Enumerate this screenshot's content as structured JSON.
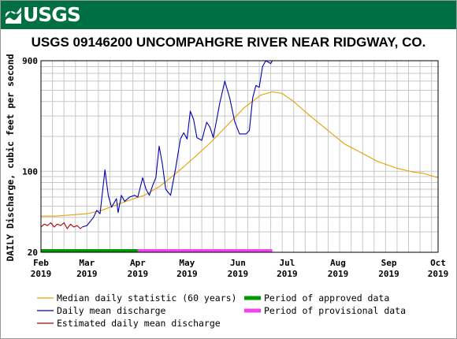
{
  "header": {
    "logo_text": "USGS",
    "brand_color": "#006f41"
  },
  "title": "USGS 09146200 UNCOMPAHGRE RIVER NEAR RIDGWAY, CO.",
  "legend": {
    "median_label": "Median daily statistic (60 years)",
    "mean_label": "Daily mean discharge",
    "estimated_label": "Estimated daily mean discharge",
    "approved_label": "Period of approved data",
    "provisional_label": "Period of provisional data"
  },
  "chart_data": {
    "type": "line",
    "title": "USGS 09146200 UNCOMPAHGRE RIVER NEAR RIDGWAY, CO.",
    "ylabel": "DAILY Discharge, cubic feet per second",
    "yscale": "log",
    "ylim": [
      20,
      900
    ],
    "yticks": [
      20,
      100,
      900
    ],
    "xlim": [
      "2019-02-01",
      "2019-10-01"
    ],
    "xticks": [
      {
        "date": "2019-02-01",
        "label1": "Feb",
        "label2": "2019"
      },
      {
        "date": "2019-03-01",
        "label1": "Mar",
        "label2": "2019"
      },
      {
        "date": "2019-04-01",
        "label1": "Apr",
        "label2": "2019"
      },
      {
        "date": "2019-05-01",
        "label1": "May",
        "label2": "2019"
      },
      {
        "date": "2019-06-01",
        "label1": "Jun",
        "label2": "2019"
      },
      {
        "date": "2019-07-01",
        "label1": "Jul",
        "label2": "2019"
      },
      {
        "date": "2019-08-01",
        "label1": "Aug",
        "label2": "2019"
      },
      {
        "date": "2019-09-01",
        "label1": "Sep",
        "label2": "2019"
      },
      {
        "date": "2019-10-01",
        "label1": "Oct",
        "label2": "2019"
      }
    ],
    "grid": true,
    "colors": {
      "median": "#e6a000",
      "mean": "#0000b4",
      "estimated": "#b40000",
      "approved": "#009a00",
      "provisional": "#ee44ee"
    },
    "series": [
      {
        "name": "Median daily statistic (60 years)",
        "points": [
          [
            "2019-02-01",
            41
          ],
          [
            "2019-02-10",
            41
          ],
          [
            "2019-02-20",
            42
          ],
          [
            "2019-03-01",
            43
          ],
          [
            "2019-03-10",
            46
          ],
          [
            "2019-03-20",
            52
          ],
          [
            "2019-03-28",
            57
          ],
          [
            "2019-04-05",
            62
          ],
          [
            "2019-04-15",
            75
          ],
          [
            "2019-04-25",
            98
          ],
          [
            "2019-05-05",
            130
          ],
          [
            "2019-05-15",
            175
          ],
          [
            "2019-05-25",
            245
          ],
          [
            "2019-06-05",
            355
          ],
          [
            "2019-06-15",
            455
          ],
          [
            "2019-06-22",
            485
          ],
          [
            "2019-06-28",
            470
          ],
          [
            "2019-07-05",
            400
          ],
          [
            "2019-07-15",
            300
          ],
          [
            "2019-07-25",
            230
          ],
          [
            "2019-08-05",
            172
          ],
          [
            "2019-08-15",
            145
          ],
          [
            "2019-08-25",
            122
          ],
          [
            "2019-09-05",
            107
          ],
          [
            "2019-09-15",
            99
          ],
          [
            "2019-09-22",
            96
          ],
          [
            "2019-10-01",
            88
          ]
        ]
      },
      {
        "name": "Daily mean discharge",
        "points": [
          [
            "2019-02-26",
            33
          ],
          [
            "2019-03-01",
            34
          ],
          [
            "2019-03-05",
            40
          ],
          [
            "2019-03-07",
            46
          ],
          [
            "2019-03-09",
            43
          ],
          [
            "2019-03-12",
            103
          ],
          [
            "2019-03-14",
            62
          ],
          [
            "2019-03-16",
            49
          ],
          [
            "2019-03-19",
            58
          ],
          [
            "2019-03-20",
            44
          ],
          [
            "2019-03-22",
            62
          ],
          [
            "2019-03-24",
            55
          ],
          [
            "2019-03-27",
            60
          ],
          [
            "2019-03-30",
            62
          ],
          [
            "2019-04-01",
            60
          ],
          [
            "2019-04-04",
            88
          ],
          [
            "2019-04-06",
            70
          ],
          [
            "2019-04-08",
            62
          ],
          [
            "2019-04-10",
            75
          ],
          [
            "2019-04-12",
            88
          ],
          [
            "2019-04-14",
            165
          ],
          [
            "2019-04-16",
            115
          ],
          [
            "2019-04-18",
            70
          ],
          [
            "2019-04-21",
            62
          ],
          [
            "2019-04-24",
            105
          ],
          [
            "2019-04-27",
            190
          ],
          [
            "2019-04-29",
            215
          ],
          [
            "2019-05-01",
            190
          ],
          [
            "2019-05-03",
            330
          ],
          [
            "2019-05-05",
            280
          ],
          [
            "2019-05-07",
            195
          ],
          [
            "2019-05-10",
            185
          ],
          [
            "2019-05-13",
            265
          ],
          [
            "2019-05-15",
            240
          ],
          [
            "2019-05-17",
            195
          ],
          [
            "2019-05-21",
            390
          ],
          [
            "2019-05-24",
            600
          ],
          [
            "2019-05-27",
            430
          ],
          [
            "2019-05-30",
            270
          ],
          [
            "2019-06-02",
            210
          ],
          [
            "2019-06-06",
            210
          ],
          [
            "2019-06-08",
            225
          ],
          [
            "2019-06-10",
            430
          ],
          [
            "2019-06-12",
            550
          ],
          [
            "2019-06-14",
            530
          ],
          [
            "2019-06-16",
            800
          ],
          [
            "2019-06-18",
            900
          ],
          [
            "2019-06-21",
            850
          ],
          [
            "2019-06-22",
            900
          ]
        ]
      },
      {
        "name": "Estimated daily mean discharge",
        "points": [
          [
            "2019-02-01",
            33
          ],
          [
            "2019-02-03",
            35
          ],
          [
            "2019-02-05",
            34
          ],
          [
            "2019-02-07",
            36
          ],
          [
            "2019-02-09",
            33
          ],
          [
            "2019-02-11",
            35
          ],
          [
            "2019-02-13",
            34
          ],
          [
            "2019-02-15",
            36
          ],
          [
            "2019-02-17",
            32
          ],
          [
            "2019-02-19",
            35
          ],
          [
            "2019-02-21",
            33
          ],
          [
            "2019-02-23",
            34
          ],
          [
            "2019-02-25",
            32
          ],
          [
            "2019-02-26",
            33
          ]
        ]
      }
    ],
    "periods": [
      {
        "name": "Period of approved data",
        "start": "2019-02-01",
        "end": "2019-04-01"
      },
      {
        "name": "Period of provisional data",
        "start": "2019-04-01",
        "end": "2019-06-22"
      }
    ]
  }
}
